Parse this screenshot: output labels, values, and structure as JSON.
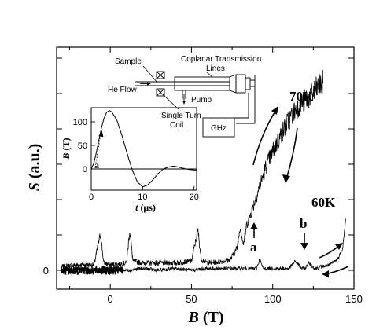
{
  "chart_data": [
    {
      "type": "line",
      "xlabel": "B (T)",
      "ylabel": "S (a.u.)",
      "xlim": [
        -33,
        150
      ],
      "x_ticks": [
        0,
        50,
        100,
        150
      ],
      "y_ticks_labeled": [
        0
      ],
      "series": [
        {
          "name": "70K",
          "x": [
            -30,
            -20,
            -10,
            -6,
            -4,
            0,
            10,
            12,
            14,
            20,
            30,
            40,
            50,
            54,
            56,
            60,
            70,
            74,
            78,
            80,
            82,
            84,
            88,
            92,
            96,
            100,
            104,
            108,
            112,
            116,
            120,
            124,
            128,
            131
          ],
          "y": [
            0.02,
            0.03,
            0.03,
            0.2,
            0.04,
            0.03,
            0.04,
            0.22,
            0.05,
            0.04,
            0.04,
            0.04,
            0.05,
            0.22,
            0.06,
            0.04,
            0.05,
            0.06,
            0.12,
            0.24,
            0.14,
            0.25,
            0.35,
            0.46,
            0.57,
            0.65,
            0.72,
            0.79,
            0.85,
            0.9,
            0.93,
            0.96,
            1.0,
            1.03
          ]
        },
        {
          "name": "60K",
          "x": [
            -30,
            -20,
            -10,
            0,
            10,
            20,
            30,
            40,
            50,
            60,
            70,
            80,
            90,
            92,
            94,
            100,
            110,
            114,
            118,
            120,
            122,
            126,
            130,
            135,
            140,
            143,
            145
          ],
          "y": [
            0.0,
            0.01,
            0.0,
            0.01,
            0.0,
            0.01,
            0.0,
            0.01,
            0.0,
            0.01,
            0.01,
            0.01,
            0.01,
            0.06,
            0.01,
            0.01,
            0.01,
            0.05,
            0.01,
            0.01,
            0.04,
            0.01,
            0.02,
            0.03,
            0.06,
            0.12,
            0.28
          ]
        }
      ],
      "annotations": [
        "70K",
        "60K",
        "a",
        "b"
      ]
    },
    {
      "type": "line",
      "xlabel": "t (μs)",
      "ylabel": "B (T)",
      "xlim": [
        0,
        20.5
      ],
      "ylim": [
        -45,
        130
      ],
      "x_ticks": [
        0,
        10,
        20
      ],
      "y_ticks": [
        0,
        50,
        100
      ],
      "series": [
        {
          "x": [
            0,
            0.5,
            1,
            1.5,
            2,
            2.5,
            3,
            3.5,
            4,
            5,
            6,
            7,
            8,
            9,
            10,
            11,
            12,
            13,
            14,
            15,
            16,
            17,
            18,
            19,
            20,
            20.5
          ],
          "y": [
            0,
            12,
            35,
            62,
            88,
            108,
            120,
            124,
            121,
            103,
            70,
            32,
            -3,
            -28,
            -38,
            -34,
            -23,
            -10,
            0,
            4,
            6,
            4,
            1,
            -1,
            -2,
            -2
          ]
        }
      ],
      "annotations": [
        "a"
      ]
    }
  ],
  "labels": {
    "x_axis": "B",
    "x_axis_unit": "(T)",
    "y_axis": "S",
    "y_axis_unit": "(a.u.)",
    "label_70k": "70K",
    "label_60k": "60K",
    "label_a": "a",
    "label_b": "b"
  },
  "inset": {
    "x_axis": "t",
    "x_axis_unit": "(μs)",
    "y_axis": "B",
    "y_axis_unit": "(T)",
    "label_a": "a"
  },
  "schematic": {
    "sample": "Sample",
    "he_flow": "He Flow",
    "coplanar": "Coplanar Transmission",
    "lines": "Lines",
    "pump": "Pump",
    "single_turn": "Single Turn",
    "coil": "Coil",
    "ghz": "GHz"
  }
}
